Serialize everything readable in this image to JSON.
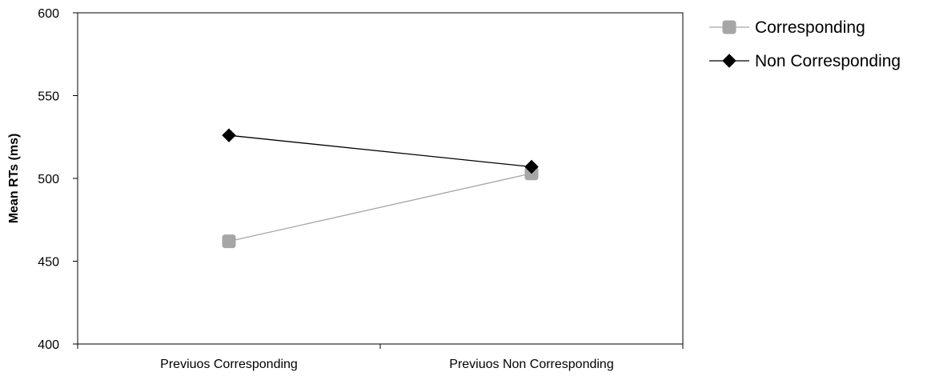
{
  "chart_data": {
    "type": "line",
    "ylabel": "Mean RTs (ms)",
    "xlabel": "",
    "ylim": [
      400,
      600
    ],
    "yticks": [
      "400",
      "450",
      "500",
      "550",
      "600"
    ],
    "categories": [
      "Previuos Corresponding",
      "Previuos Non Corresponding"
    ],
    "series": [
      {
        "name": "Corresponding",
        "values": [
          462,
          503
        ],
        "color": "#a6a6a6",
        "marker": "square"
      },
      {
        "name": "Non Corresponding",
        "values": [
          526,
          507
        ],
        "color": "#000000",
        "marker": "diamond"
      }
    ],
    "grid": false,
    "legend_position": "right"
  }
}
